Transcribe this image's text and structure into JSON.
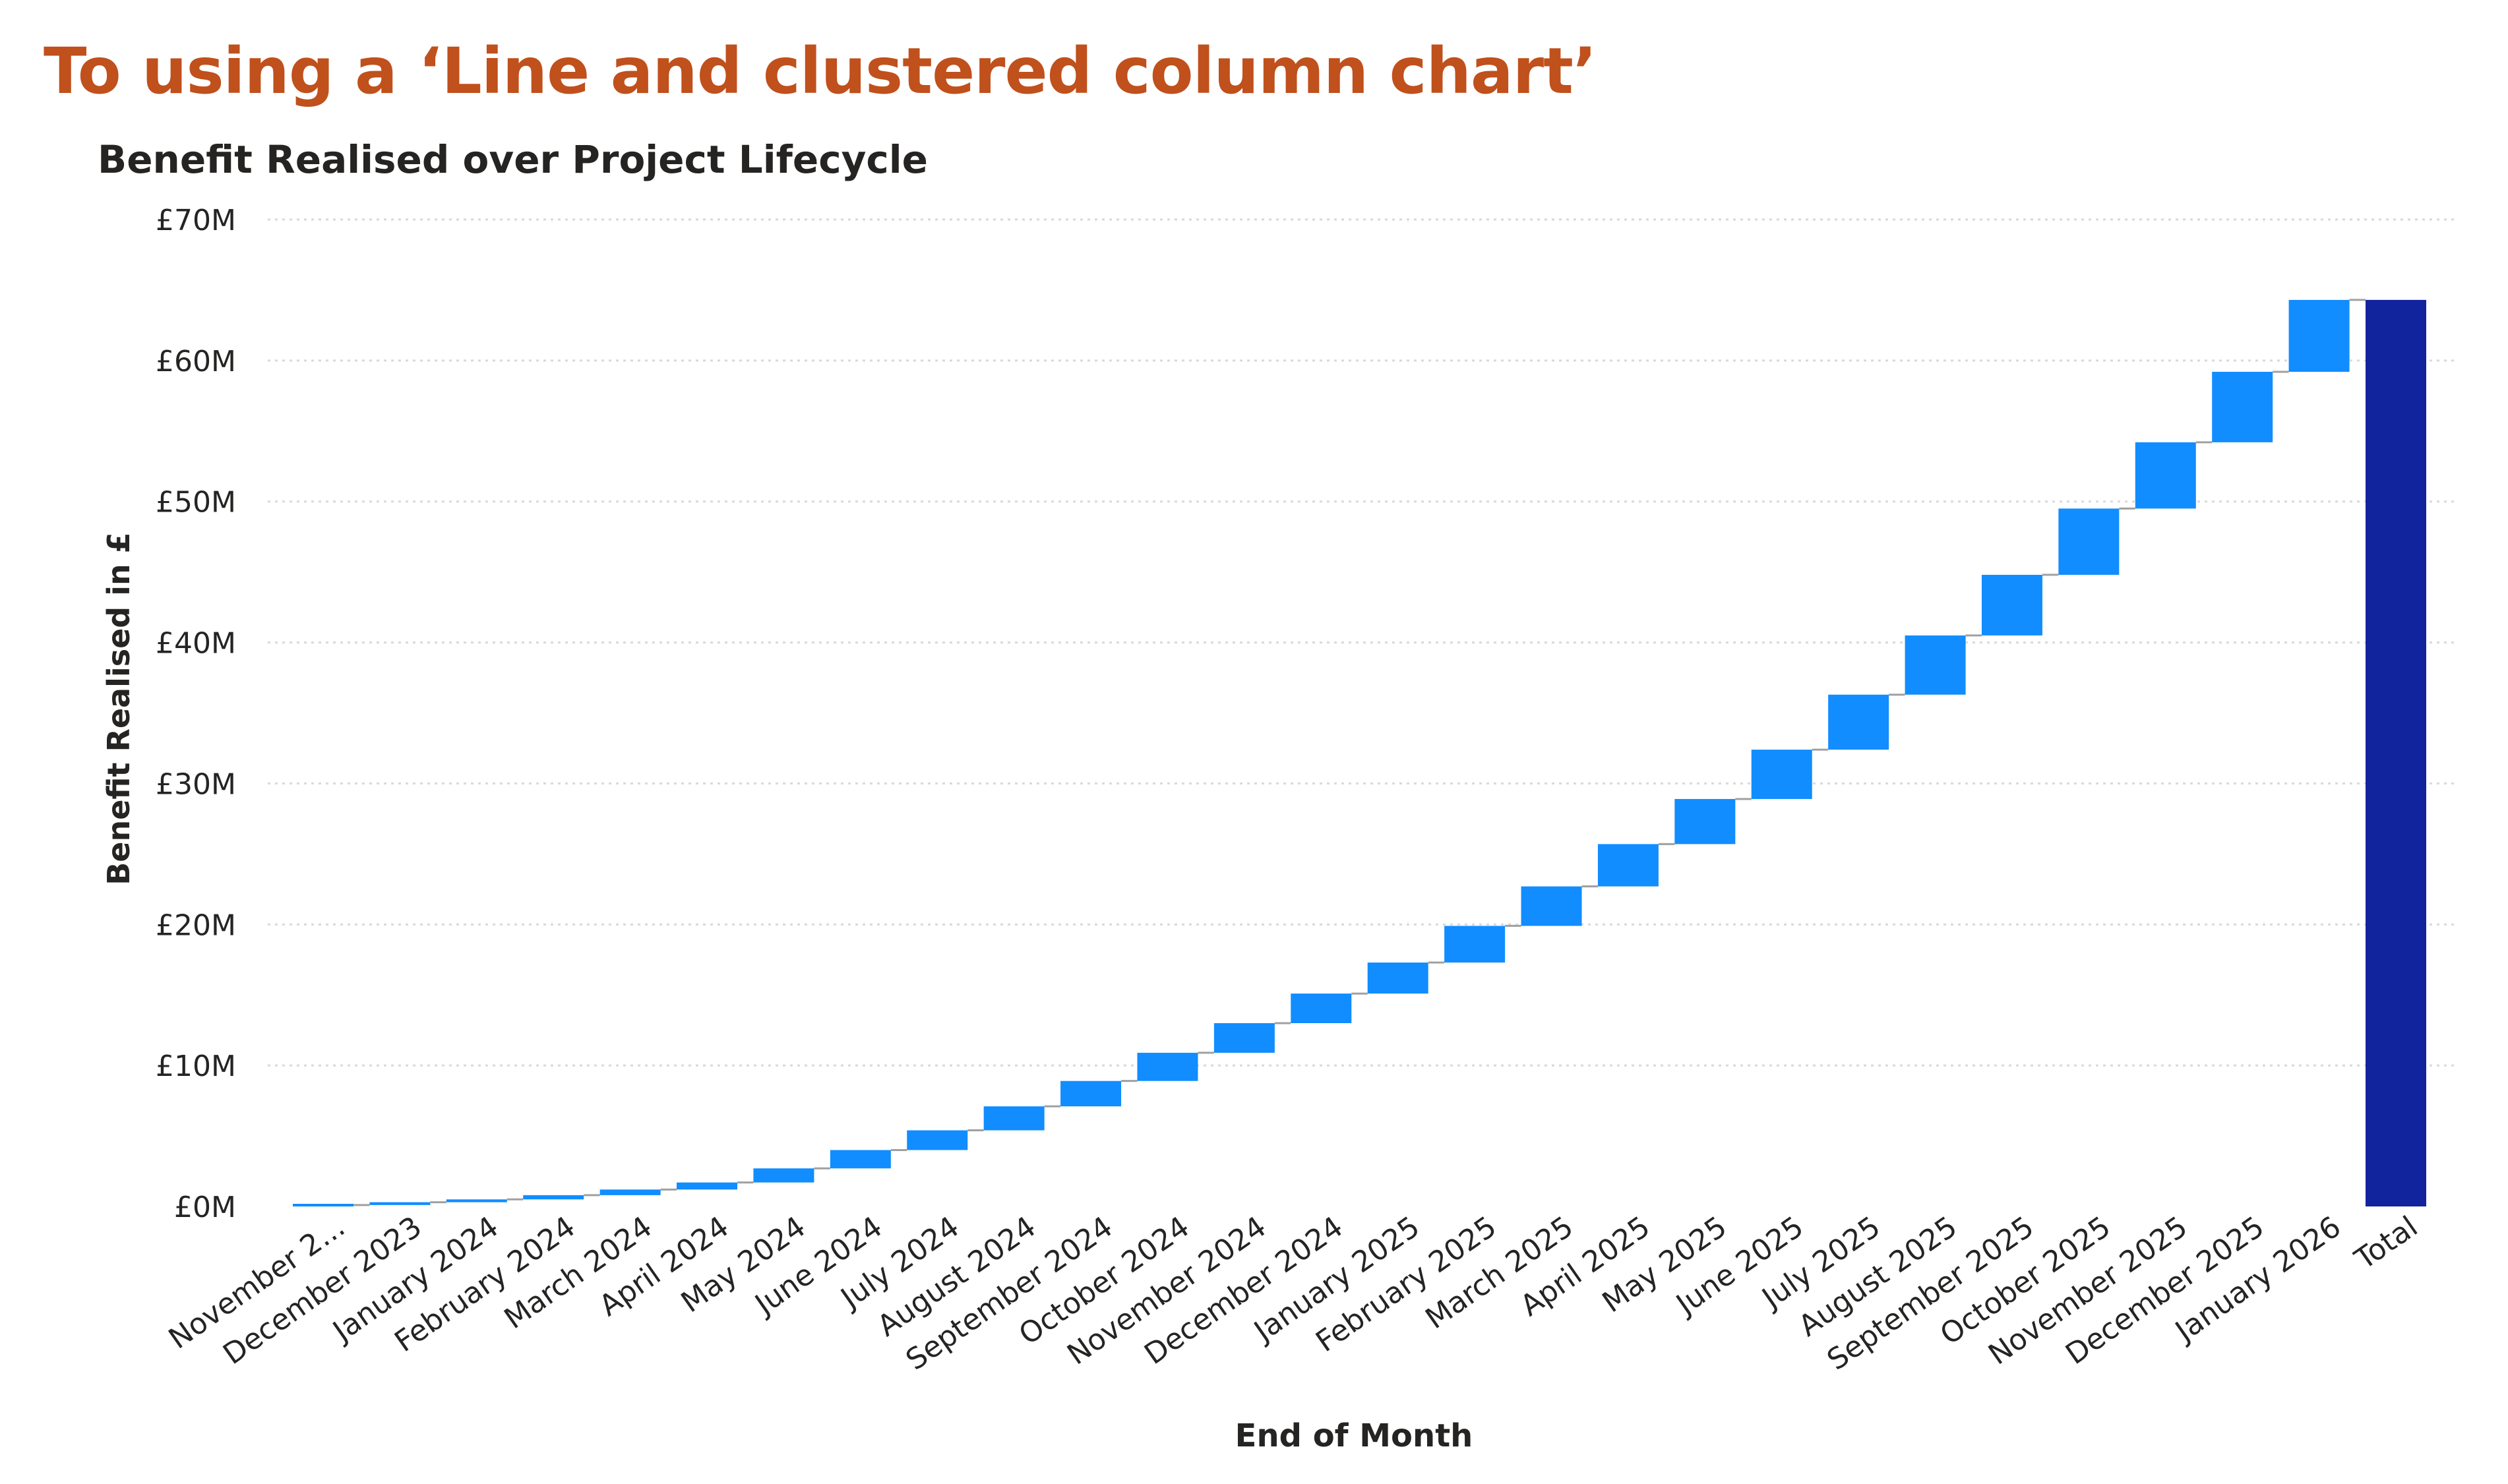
{
  "heading": "To using a ‘Line and clustered column chart’",
  "chart_data": {
    "type": "bar",
    "subtype": "waterfall",
    "title": "Benefit Realised over Project Lifecycle",
    "xlabel": "End of Month",
    "ylabel": "Benefit Realised in £",
    "ylim": [
      0,
      70
    ],
    "y_ticks": [
      "£0M",
      "£10M",
      "£20M",
      "£30M",
      "£40M",
      "£50M",
      "£60M",
      "£70M"
    ],
    "grid": true,
    "categories": [
      "November 2...",
      "December 2023",
      "January 2024",
      "February 2024",
      "March 2024",
      "April 2024",
      "May 2024",
      "June 2024",
      "July 2024",
      "August 2024",
      "September 2024",
      "October 2024",
      "November 2024",
      "December 2024",
      "January 2025",
      "February 2025",
      "March 2025",
      "April 2025",
      "May 2025",
      "June 2025",
      "July 2025",
      "August 2025",
      "September 2025",
      "October 2025",
      "November 2025",
      "December 2025",
      "January 2026",
      "Total"
    ],
    "cumulative": [
      0.1,
      0.3,
      0.5,
      0.8,
      1.2,
      1.7,
      2.7,
      4.0,
      5.4,
      7.1,
      8.9,
      10.9,
      13.0,
      15.1,
      17.3,
      19.9,
      22.7,
      25.7,
      28.9,
      32.4,
      36.3,
      40.5,
      44.8,
      49.5,
      54.2,
      59.2,
      64.3
    ],
    "total": 64.3,
    "colors": {
      "increase": "#118DFF",
      "total": "#12239E",
      "connector": "#A0A0A0",
      "grid": "#D9D9D9",
      "text": "#252423"
    }
  }
}
